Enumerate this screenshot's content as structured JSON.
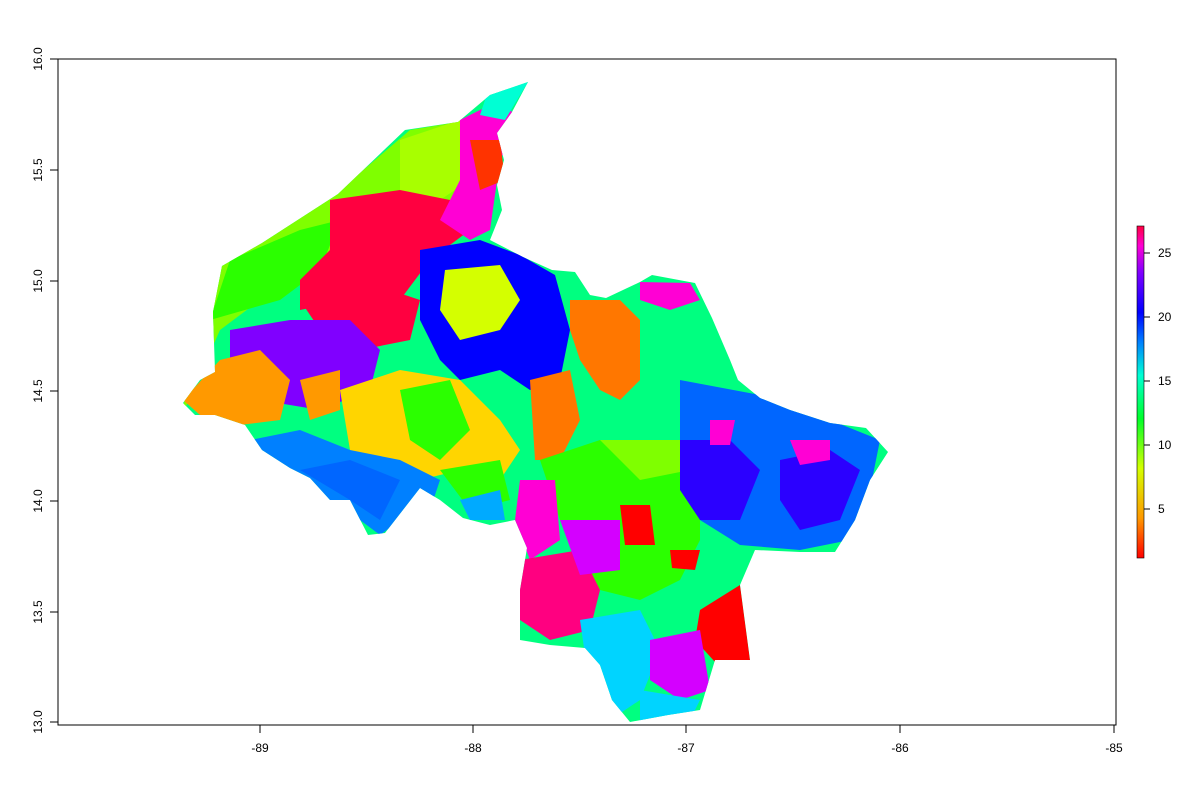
{
  "map": {
    "x_ticks": [
      "-89",
      "-88",
      "-87",
      "-86",
      "-85"
    ],
    "y_ticks": [
      "13.0",
      "13.5",
      "14.0",
      "14.5",
      "15.0",
      "15.5",
      "16.0"
    ],
    "xlim": [
      -89.93,
      -85
    ],
    "ylim": [
      12.98,
      16.0
    ],
    "legend": {
      "ticks": [
        "5",
        "10",
        "15",
        "20",
        "25"
      ],
      "min": 1,
      "max": 27,
      "placement": "right"
    },
    "palette": [
      "#ff0000",
      "#ff5500",
      "#ff9900",
      "#ffd500",
      "#d4ff00",
      "#7fff00",
      "#2bff00",
      "#00ff2b",
      "#00ff80",
      "#00ffd4",
      "#00d4ff",
      "#0080ff",
      "#002bff",
      "#2b00ff",
      "#8000ff",
      "#d400ff",
      "#ff00d4",
      "#ff0080",
      "#ff0040"
    ]
  }
}
